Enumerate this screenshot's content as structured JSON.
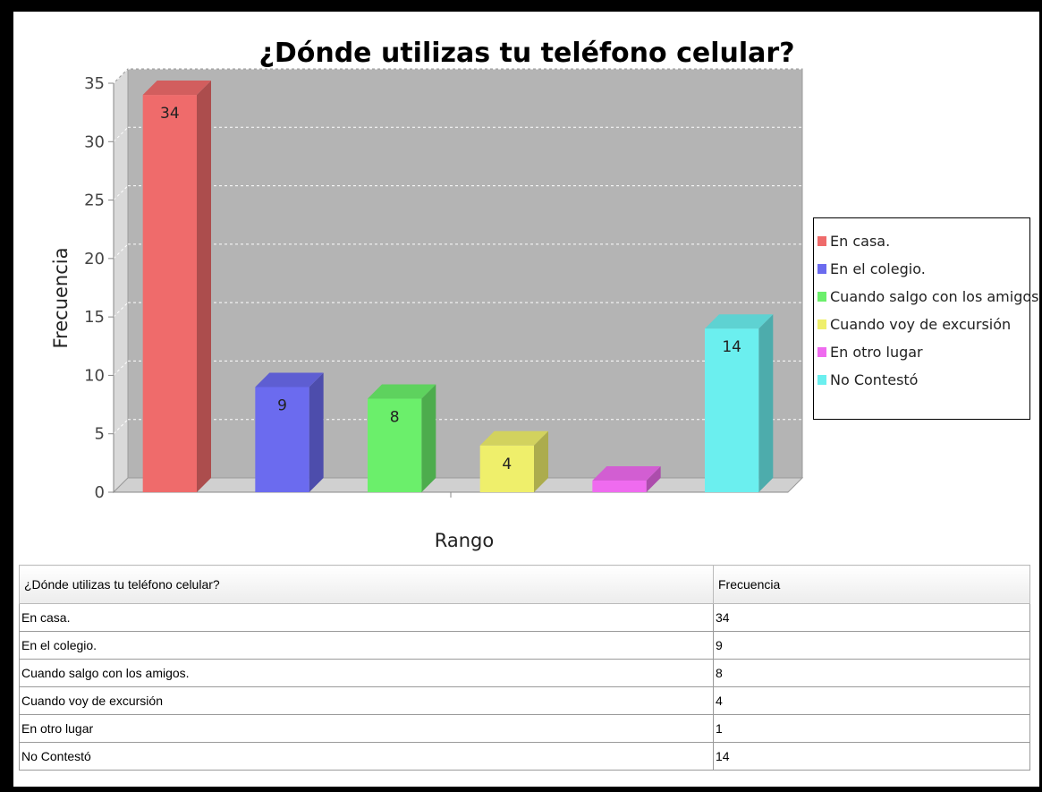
{
  "chart_data": {
    "type": "bar",
    "title": "¿Dónde utilizas tu teléfono celular?",
    "xlabel": "Rango",
    "ylabel": "Frecuencia",
    "ylim": [
      0,
      35
    ],
    "yticks": [
      0,
      5,
      10,
      15,
      20,
      25,
      30,
      35
    ],
    "grid": true,
    "legend_position": "right",
    "categories": [
      "En casa.",
      "En el colegio.",
      "Cuando salgo con los amigos.",
      "Cuando voy de excursión",
      "En otro lugar",
      "No Contestó"
    ],
    "values": [
      34,
      9,
      8,
      4,
      1,
      14
    ],
    "data_labels": [
      "34",
      "9",
      "8",
      "4",
      "",
      "14"
    ],
    "colors": [
      "#ef6b6b",
      "#6b6bef",
      "#6bef6b",
      "#efef6b",
      "#ef6bef",
      "#6befef"
    ]
  },
  "table": {
    "headers": [
      "¿Dónde utilizas tu teléfono celular?",
      "Frecuencia"
    ],
    "rows": [
      [
        "En casa.",
        "34"
      ],
      [
        "En el colegio.",
        "9"
      ],
      [
        "Cuando salgo con los amigos.",
        "8"
      ],
      [
        "Cuando voy de excursión",
        "4"
      ],
      [
        "En otro lugar",
        "1"
      ],
      [
        "No Contestó",
        "14"
      ]
    ]
  }
}
